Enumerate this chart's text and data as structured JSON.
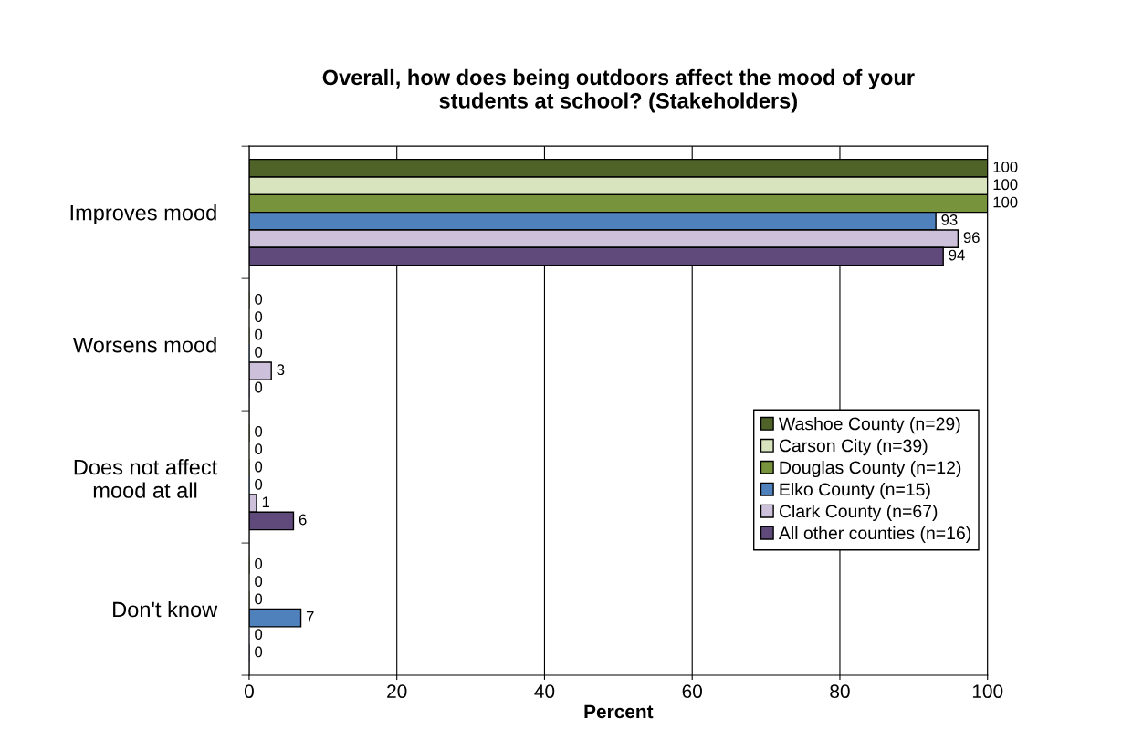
{
  "chart_data": {
    "type": "bar",
    "orientation": "horizontal",
    "title": "Overall, how does being outdoors affect the mood of your\nstudents at school? (Stakeholders)",
    "xlabel": "Percent",
    "categories": [
      "Improves mood",
      "Worsens mood",
      "Does not affect\nmood at all",
      "Don't know"
    ],
    "series": [
      {
        "name": "Washoe County (n=29)",
        "color": "#4f6228",
        "values": [
          100,
          0,
          0,
          0
        ]
      },
      {
        "name": "Carson City (n=39)",
        "color": "#d7e4bd",
        "values": [
          100,
          0,
          0,
          0
        ]
      },
      {
        "name": "Douglas County (n=12)",
        "color": "#77933c",
        "values": [
          100,
          0,
          0,
          0
        ]
      },
      {
        "name": "Elko County (n=15)",
        "color": "#4f81bd",
        "values": [
          93,
          0,
          0,
          7
        ]
      },
      {
        "name": "Clark County (n=67)",
        "color": "#ccc0da",
        "values": [
          96,
          3,
          1,
          0
        ]
      },
      {
        "name": "All other counties (n=16)",
        "color": "#604a7b",
        "values": [
          94,
          0,
          6,
          0
        ]
      }
    ],
    "xlim": [
      0,
      100
    ],
    "xticks": [
      0,
      20,
      40,
      60,
      80,
      100
    ],
    "grid": "x",
    "legend": "right",
    "data_labels": true
  }
}
